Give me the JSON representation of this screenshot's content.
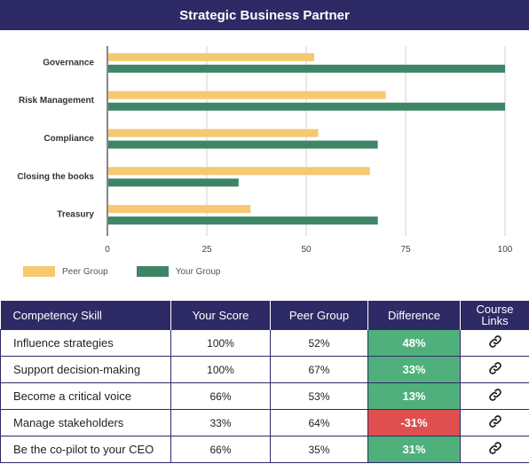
{
  "title": "Strategic Business Partner",
  "chart_data": {
    "type": "bar",
    "orientation": "horizontal",
    "categories": [
      "Governance",
      "Risk Management",
      "Compliance",
      "Closing the books",
      "Treasury"
    ],
    "series": [
      {
        "name": "Peer Group",
        "color": "#f5c872",
        "values": [
          52,
          70,
          53,
          66,
          36
        ]
      },
      {
        "name": "Your Group",
        "color": "#3d8567",
        "values": [
          100,
          100,
          68,
          33,
          68
        ]
      }
    ],
    "xlim": [
      0,
      100
    ],
    "xticks": [
      "0",
      "25",
      "50",
      "75",
      "100"
    ],
    "grid": true,
    "legend_position": "bottom-left"
  },
  "table": {
    "headers": [
      "Competency Skill",
      "Your Score",
      "Peer Group",
      "Difference",
      "Course Links"
    ],
    "rows": [
      {
        "skill": "Influence strategies",
        "your_score": "100%",
        "peer_group": "52%",
        "difference": "48%",
        "positive": true,
        "link_icon": "chain-link-icon"
      },
      {
        "skill": "Support decision-making",
        "your_score": "100%",
        "peer_group": "67%",
        "difference": "33%",
        "positive": true,
        "link_icon": "chain-link-icon"
      },
      {
        "skill": "Become a critical voice",
        "your_score": "66%",
        "peer_group": "53%",
        "difference": "13%",
        "positive": true,
        "link_icon": "chain-link-icon"
      },
      {
        "skill": "Manage stakeholders",
        "your_score": "33%",
        "peer_group": "64%",
        "difference": "-31%",
        "positive": false,
        "link_icon": "chain-link-icon"
      },
      {
        "skill": "Be the co-pilot to your CEO",
        "your_score": "66%",
        "peer_group": "35%",
        "difference": "31%",
        "positive": true,
        "link_icon": "chain-link-icon"
      }
    ]
  },
  "colors": {
    "header": "#2e2a66",
    "positive": "#4fb07c",
    "negative": "#df4f4f"
  }
}
